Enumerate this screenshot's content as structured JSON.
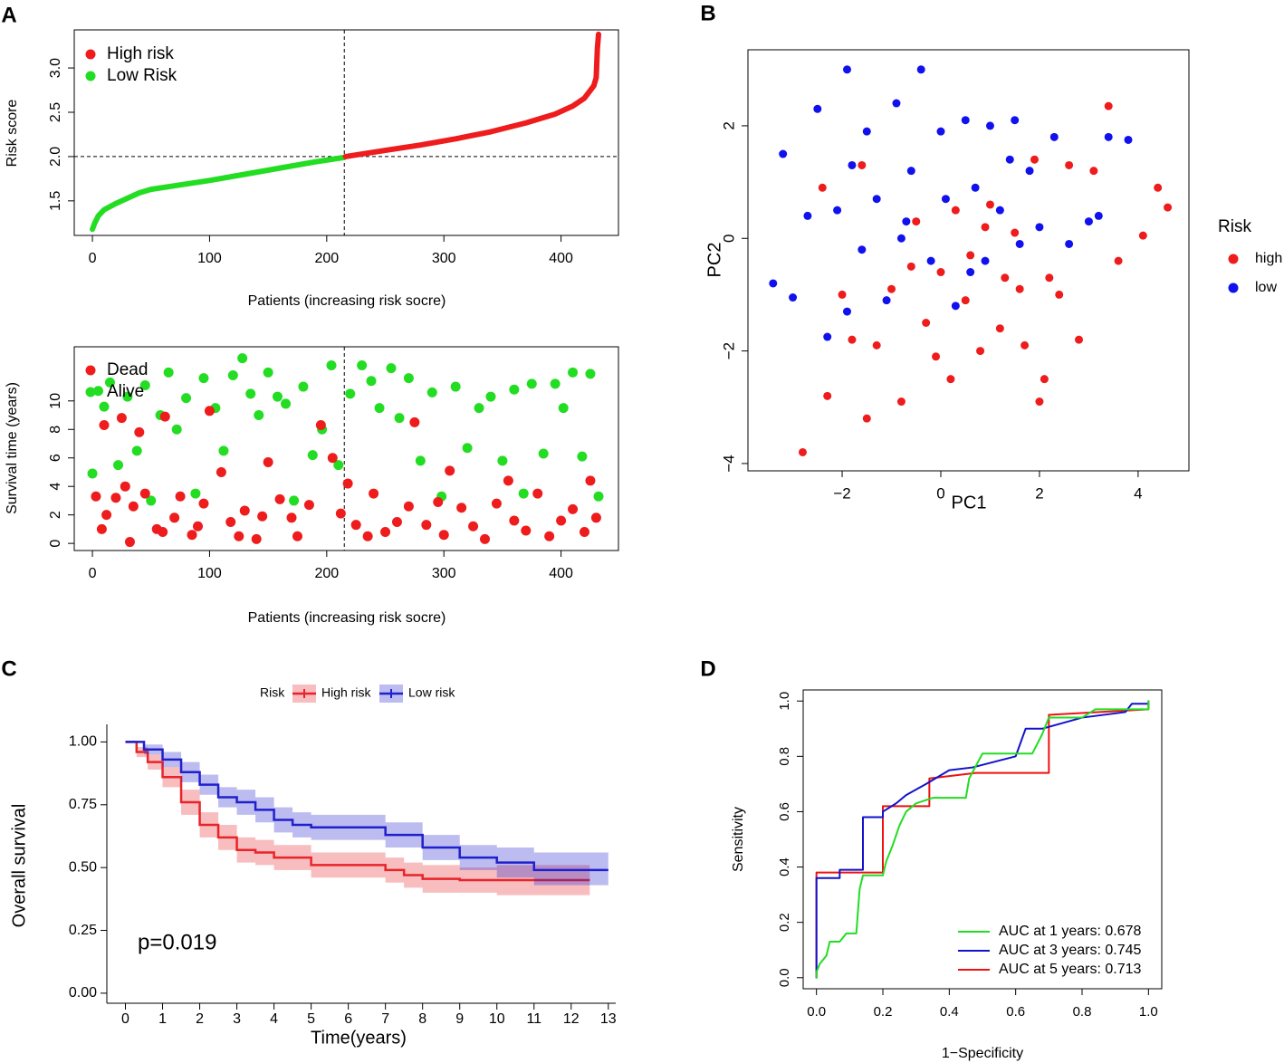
{
  "chart_data": [
    {
      "type": "line",
      "panel": "A",
      "xlabel": "Patients (increasing risk socre)",
      "ylabel": "Risk score",
      "xlim": [
        -15.5,
        449
      ],
      "ylim": [
        1.11,
        3.43
      ],
      "xticks": [
        0,
        100,
        200,
        300,
        400
      ],
      "yticks": [
        1.5,
        {
          "value": 2,
          "label": "2.0"
        },
        2.5,
        {
          "value": 3,
          "label": "3.0"
        }
      ],
      "reference_lines": {
        "x": 215,
        "y": 2
      },
      "legend": "top-left",
      "series": [
        {
          "name": "High risk",
          "color": "#ee1c1c",
          "x": [
            216,
            250,
            280,
            310,
            340,
            370,
            395,
            410,
            420,
            428,
            430,
            431,
            432
          ],
          "values": [
            2.0,
            2.07,
            2.13,
            2.2,
            2.28,
            2.38,
            2.48,
            2.57,
            2.66,
            2.8,
            2.89,
            3.22,
            3.38
          ]
        },
        {
          "name": "Low Risk",
          "color": "#22dd22",
          "x": [
            0,
            2,
            5,
            10,
            20,
            30,
            40,
            50,
            70,
            100,
            130,
            160,
            190,
            215
          ],
          "values": [
            1.18,
            1.25,
            1.33,
            1.4,
            1.47,
            1.53,
            1.59,
            1.63,
            1.67,
            1.73,
            1.8,
            1.87,
            1.94,
            1.99
          ]
        }
      ]
    },
    {
      "type": "scatter",
      "xlabel": "Patients (increasing risk socre)",
      "ylabel": "Survival time (years)",
      "xlim": [
        -15.5,
        449
      ],
      "ylim": [
        -0.5,
        13.8
      ],
      "xticks": [
        0,
        100,
        200,
        300,
        400
      ],
      "yticks": [
        0,
        2,
        4,
        6,
        8,
        10
      ],
      "reference_lines": {
        "x": 215
      },
      "legend": "top-left",
      "series": [
        {
          "name": "Dead",
          "color": "#ee1c1c",
          "x": [
            3,
            8,
            10,
            12,
            20,
            25,
            28,
            32,
            35,
            40,
            45,
            55,
            60,
            62,
            70,
            75,
            85,
            90,
            95,
            100,
            110,
            118,
            125,
            130,
            140,
            145,
            150,
            160,
            170,
            175,
            185,
            195,
            205,
            212,
            218,
            225,
            235,
            240,
            250,
            260,
            270,
            275,
            285,
            295,
            300,
            305,
            315,
            325,
            335,
            345,
            355,
            360,
            370,
            380,
            390,
            400,
            410,
            420,
            425,
            430
          ],
          "values": [
            3.3,
            1,
            8.3,
            2,
            3.2,
            8.8,
            4,
            0.1,
            2.6,
            7.8,
            3.5,
            1,
            0.8,
            8.9,
            1.8,
            3.3,
            0.6,
            1.2,
            2.8,
            9.3,
            5,
            1.5,
            0.5,
            2.3,
            0.3,
            1.9,
            5.7,
            3.1,
            1.8,
            0.5,
            2.7,
            8.3,
            6,
            2.1,
            4.2,
            1.3,
            0.5,
            3.5,
            0.8,
            1.5,
            2.6,
            8.5,
            1.3,
            2.9,
            0.6,
            5.1,
            2.5,
            1.2,
            0.3,
            2.8,
            4.4,
            1.6,
            0.9,
            3.5,
            0.5,
            1.6,
            2.4,
            0.8,
            4.4,
            1.8
          ]
        },
        {
          "name": "Alive",
          "color": "#22dd22",
          "x": [
            0,
            5,
            10,
            15,
            22,
            30,
            38,
            45,
            50,
            58,
            65,
            72,
            80,
            88,
            95,
            105,
            112,
            120,
            128,
            135,
            142,
            150,
            158,
            165,
            172,
            180,
            188,
            196,
            204,
            210,
            220,
            230,
            238,
            245,
            255,
            262,
            270,
            280,
            290,
            298,
            310,
            320,
            330,
            340,
            350,
            360,
            368,
            375,
            385,
            395,
            402,
            410,
            418,
            425,
            432
          ],
          "values": [
            4.9,
            10.7,
            9.6,
            11.3,
            5.5,
            10.3,
            6.5,
            11.1,
            3,
            9,
            12,
            8,
            10.2,
            3.5,
            11.6,
            9.5,
            6.5,
            11.8,
            13,
            10.5,
            9,
            12,
            10.3,
            9.8,
            3,
            11,
            6.2,
            8,
            12.5,
            5.5,
            10.5,
            12.5,
            11.4,
            9.5,
            12.3,
            8.8,
            11.6,
            5.8,
            10.6,
            3.3,
            11,
            6.7,
            9.5,
            10.3,
            5.8,
            10.8,
            3.5,
            11.2,
            6.3,
            11.2,
            9.5,
            12,
            6.1,
            11.9,
            3.3
          ]
        }
      ]
    },
    {
      "type": "scatter",
      "panel": "B",
      "xlabel": "PC1",
      "ylabel": "PC2",
      "xlim": [
        -3.91,
        5.03
      ],
      "ylim": [
        -4.13,
        3.35
      ],
      "xticks": [
        {
          "value": -2,
          "label": "−2"
        },
        0,
        2,
        4
      ],
      "yticks": [
        {
          "value": -4,
          "label": "−4"
        },
        {
          "value": -2,
          "label": "−2"
        },
        0,
        2
      ],
      "legend": "right",
      "legend_title": "Risk",
      "series": [
        {
          "name": "high",
          "color": "#ee1c1c",
          "x": [
            -2.8,
            -2.3,
            -2.0,
            -1.8,
            -1.5,
            -1.3,
            -1.0,
            -0.8,
            -0.6,
            -0.5,
            -0.3,
            -0.1,
            0.0,
            0.2,
            0.3,
            0.5,
            0.6,
            0.8,
            1.0,
            1.2,
            1.3,
            1.5,
            1.7,
            1.9,
            2.0,
            2.2,
            2.4,
            2.6,
            2.8,
            3.1,
            3.4,
            3.6,
            4.1,
            4.4,
            4.6,
            -2.4,
            -1.6,
            0.9,
            1.6,
            2.1
          ],
          "values": [
            -3.8,
            -2.8,
            -1.0,
            -1.8,
            -3.2,
            -1.9,
            -0.9,
            -2.9,
            -0.5,
            0.3,
            -1.5,
            -2.1,
            -0.6,
            -2.5,
            0.5,
            -1.1,
            -0.3,
            -2.0,
            0.6,
            -1.6,
            -0.7,
            0.1,
            -1.9,
            1.4,
            -2.9,
            -0.7,
            -1.0,
            1.3,
            -1.8,
            1.2,
            2.35,
            -0.4,
            0.05,
            0.9,
            0.55,
            0.9,
            1.3,
            0.2,
            -0.9,
            -2.5
          ]
        },
        {
          "name": "low",
          "color": "#1111ee",
          "x": [
            -3.4,
            -3.2,
            -3.0,
            -2.7,
            -2.5,
            -2.3,
            -2.1,
            -1.9,
            -1.8,
            -1.6,
            -1.5,
            -1.3,
            -1.1,
            -0.9,
            -0.7,
            -0.6,
            -0.4,
            -0.2,
            0.0,
            0.1,
            0.3,
            0.5,
            0.7,
            0.9,
            1.0,
            1.2,
            1.4,
            1.6,
            1.8,
            2.0,
            2.3,
            2.6,
            3.0,
            3.2,
            3.4,
            3.8,
            -1.9,
            -0.8,
            0.6,
            1.5
          ],
          "values": [
            -0.8,
            1.5,
            -1.05,
            0.4,
            2.3,
            -1.75,
            0.5,
            3.0,
            1.3,
            -0.2,
            1.9,
            0.7,
            -1.1,
            2.4,
            0.3,
            1.2,
            3.0,
            -0.4,
            1.9,
            0.7,
            -1.2,
            2.1,
            0.9,
            -0.4,
            2.0,
            0.5,
            1.4,
            -0.1,
            1.2,
            0.2,
            1.8,
            -0.1,
            0.3,
            0.4,
            1.8,
            1.75,
            -1.3,
            0.0,
            -0.6,
            2.1
          ]
        }
      ]
    },
    {
      "type": "step",
      "panel": "C",
      "xlabel": "Time(years)",
      "ylabel": "Overall survival",
      "xlim": [
        -0.5,
        13.2
      ],
      "ylim": [
        -0.04,
        1.07
      ],
      "xticks": [
        0,
        1,
        2,
        3,
        4,
        5,
        6,
        7,
        8,
        9,
        10,
        11,
        12,
        13
      ],
      "yticks": [
        {
          "value": 0,
          "label": "0.00"
        },
        0.25,
        {
          "value": 0.5,
          "label": "0.50"
        },
        0.75,
        {
          "value": 1,
          "label": "1.00"
        }
      ],
      "legend": "top",
      "legend_title": "Risk",
      "annotation": "p=0.019",
      "series": [
        {
          "name": "High risk",
          "color": "#e8242a",
          "x": [
            0,
            0.3,
            0.6,
            1,
            1.5,
            2,
            2.5,
            3,
            3.5,
            4,
            5,
            6,
            7,
            7.5,
            8,
            9,
            10,
            11,
            12,
            12.5
          ],
          "values": [
            1,
            0.96,
            0.92,
            0.86,
            0.76,
            0.67,
            0.62,
            0.57,
            0.56,
            0.54,
            0.51,
            0.51,
            0.49,
            0.47,
            0.455,
            0.45,
            0.45,
            0.45,
            0.45,
            0.45
          ],
          "lower": [
            1,
            0.94,
            0.89,
            0.82,
            0.71,
            0.62,
            0.57,
            0.52,
            0.51,
            0.49,
            0.46,
            0.46,
            0.44,
            0.42,
            0.4,
            0.4,
            0.39,
            0.39,
            0.39,
            0.39
          ],
          "upper": [
            1,
            0.98,
            0.95,
            0.9,
            0.81,
            0.72,
            0.67,
            0.62,
            0.61,
            0.59,
            0.56,
            0.56,
            0.54,
            0.52,
            0.51,
            0.5,
            0.51,
            0.51,
            0.51,
            0.51
          ]
        },
        {
          "name": "Low risk",
          "color": "#2020cc",
          "x": [
            0,
            0.5,
            1,
            1.5,
            2,
            2.5,
            3,
            3.5,
            4,
            4.5,
            5,
            6,
            7,
            8,
            9,
            10,
            11,
            12,
            13
          ],
          "values": [
            1,
            0.97,
            0.93,
            0.88,
            0.83,
            0.78,
            0.76,
            0.73,
            0.69,
            0.67,
            0.66,
            0.66,
            0.63,
            0.58,
            0.54,
            0.52,
            0.49,
            0.49,
            0.49
          ],
          "lower": [
            1,
            0.95,
            0.9,
            0.84,
            0.79,
            0.74,
            0.71,
            0.68,
            0.64,
            0.62,
            0.61,
            0.61,
            0.58,
            0.53,
            0.49,
            0.46,
            0.43,
            0.43,
            0.4
          ],
          "upper": [
            1,
            0.99,
            0.96,
            0.92,
            0.87,
            0.82,
            0.81,
            0.78,
            0.74,
            0.72,
            0.71,
            0.71,
            0.68,
            0.63,
            0.59,
            0.58,
            0.56,
            0.56,
            0.58
          ]
        }
      ]
    },
    {
      "type": "line",
      "panel": "D",
      "xlabel": "1−Specificity",
      "ylabel": "Sensitivity",
      "xlim": [
        -0.04,
        1.04
      ],
      "ylim": [
        -0.04,
        1.04
      ],
      "xticks": [
        {
          "value": 0,
          "label": "0.0"
        },
        0.2,
        0.4,
        0.6,
        0.8,
        {
          "value": 1,
          "label": "1.0"
        }
      ],
      "yticks": [
        {
          "value": 0,
          "label": "0.0"
        },
        0.2,
        0.4,
        0.6,
        0.8,
        {
          "value": 1,
          "label": "1.0"
        }
      ],
      "legend": "bottom-right",
      "series": [
        {
          "name": "AUC at 1 years: 0.678",
          "color": "#22dd22",
          "x": [
            0,
            0,
            0.01,
            0.03,
            0.04,
            0.07,
            0.09,
            0.12,
            0.13,
            0.14,
            0.2,
            0.21,
            0.23,
            0.25,
            0.27,
            0.3,
            0.35,
            0.45,
            0.46,
            0.5,
            0.65,
            0.68,
            0.7,
            0.8,
            0.84,
            1,
            1
          ],
          "values": [
            0,
            0.02,
            0.05,
            0.08,
            0.13,
            0.13,
            0.16,
            0.16,
            0.32,
            0.37,
            0.37,
            0.42,
            0.48,
            0.55,
            0.6,
            0.63,
            0.65,
            0.65,
            0.72,
            0.81,
            0.81,
            0.88,
            0.94,
            0.94,
            0.97,
            0.97,
            1
          ]
        },
        {
          "name": "AUC at 3 years: 0.745",
          "color": "#1111cc",
          "x": [
            0,
            0,
            0.07,
            0.07,
            0.14,
            0.14,
            0.2,
            0.2,
            0.24,
            0.27,
            0.33,
            0.4,
            0.47,
            0.6,
            0.63,
            0.68,
            0.8,
            0.93,
            0.95,
            1
          ],
          "values": [
            0,
            0.36,
            0.36,
            0.39,
            0.39,
            0.58,
            0.58,
            0.6,
            0.63,
            0.66,
            0.7,
            0.75,
            0.76,
            0.8,
            0.9,
            0.9,
            0.94,
            0.96,
            0.99,
            0.99
          ]
        },
        {
          "name": "AUC at 5 years: 0.713",
          "color": "#ee1111",
          "x": [
            0,
            0,
            0.2,
            0.2,
            0.34,
            0.34,
            0.48,
            0.7,
            0.7,
            1,
            1
          ],
          "values": [
            0,
            0.38,
            0.38,
            0.62,
            0.62,
            0.72,
            0.74,
            0.74,
            0.95,
            0.97,
            1
          ]
        }
      ]
    }
  ]
}
